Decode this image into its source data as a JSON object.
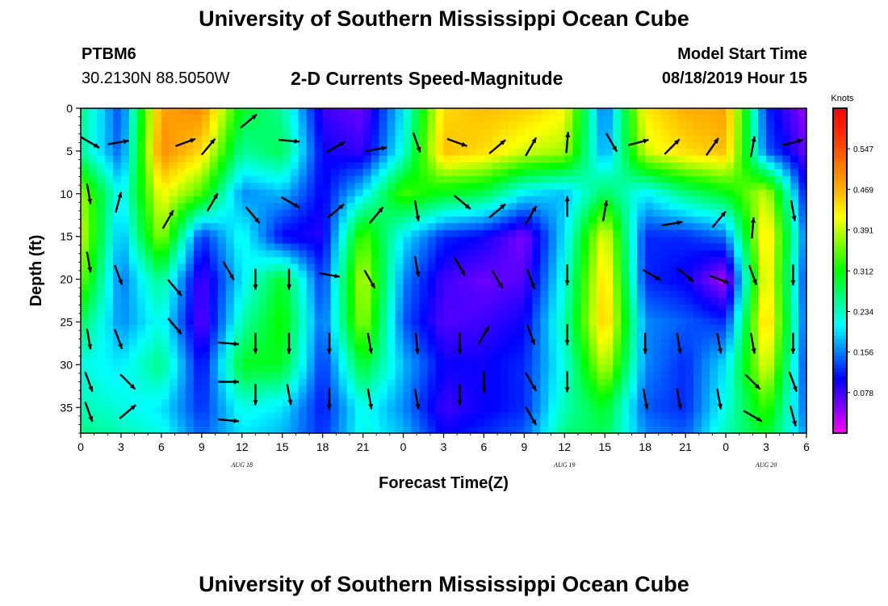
{
  "header": {
    "title": "University of Southern Mississippi Ocean Cube",
    "station_id": "PTBM6",
    "station_coords": "30.2130N 88.5050W",
    "subtitle": "2-D Currents Speed-Magnitude",
    "model_start_label": "Model Start Time",
    "model_start_value": "08/18/2019 Hour 15"
  },
  "footer": {
    "title": "University of Southern Mississippi Ocean Cube"
  },
  "chart_data": {
    "type": "heatmap",
    "title": "2-D Currents Speed-Magnitude",
    "xlabel": "Forecast Time(Z)",
    "ylabel": "Depth (ft)",
    "x_ticks": [
      "0",
      "3",
      "6",
      "9",
      "12",
      "15",
      "18",
      "21",
      "0",
      "3",
      "6",
      "9",
      "12",
      "15",
      "18",
      "21",
      "0",
      "3",
      "6"
    ],
    "x_range_hours": [
      0,
      54
    ],
    "date_labels": [
      {
        "text": "AUG 18",
        "hour": 12
      },
      {
        "text": "AUG 19",
        "hour": 36
      },
      {
        "text": "AUG 20",
        "hour": 51
      }
    ],
    "y_ticks": [
      0,
      5,
      10,
      15,
      20,
      25,
      30,
      35
    ],
    "y_range_ft": [
      0,
      38
    ],
    "colorbar": {
      "units": "Knots",
      "ticks": [
        0.547,
        0.469,
        0.391,
        0.312,
        0.234,
        0.156,
        0.078
      ],
      "range": [
        0.0,
        0.625
      ],
      "colors": [
        "#ff00ff",
        "#7f00ff",
        "#0000ff",
        "#0080ff",
        "#00ffff",
        "#00ff80",
        "#00ff00",
        "#80ff00",
        "#ffff00",
        "#ffb000",
        "#ff7000",
        "#ff3000",
        "#ff0000"
      ]
    },
    "time_hours": [
      0,
      3,
      6,
      9,
      12,
      15,
      18,
      21,
      24,
      27,
      30,
      33,
      36,
      39,
      42,
      45,
      48,
      51,
      54
    ],
    "depth_ft": [
      0,
      5,
      10,
      15,
      20,
      25,
      30,
      35,
      38
    ],
    "speed_knots": [
      [
        0.26,
        0.13,
        0.48,
        0.5,
        0.3,
        0.25,
        0.08,
        0.06,
        0.2,
        0.44,
        0.46,
        0.45,
        0.42,
        0.14,
        0.43,
        0.47,
        0.48,
        0.12,
        0.04
      ],
      [
        0.25,
        0.14,
        0.5,
        0.44,
        0.25,
        0.28,
        0.1,
        0.08,
        0.22,
        0.46,
        0.44,
        0.4,
        0.38,
        0.16,
        0.4,
        0.44,
        0.46,
        0.14,
        0.06
      ],
      [
        0.38,
        0.2,
        0.42,
        0.34,
        0.16,
        0.18,
        0.1,
        0.2,
        0.34,
        0.3,
        0.28,
        0.2,
        0.18,
        0.28,
        0.2,
        0.26,
        0.3,
        0.4,
        0.1
      ],
      [
        0.4,
        0.17,
        0.38,
        0.12,
        0.22,
        0.1,
        0.09,
        0.35,
        0.2,
        0.12,
        0.1,
        0.05,
        0.2,
        0.42,
        0.12,
        0.12,
        0.15,
        0.45,
        0.14
      ],
      [
        0.36,
        0.15,
        0.26,
        0.07,
        0.2,
        0.3,
        0.12,
        0.4,
        0.16,
        0.08,
        0.06,
        0.07,
        0.22,
        0.45,
        0.12,
        0.1,
        0.03,
        0.44,
        0.12
      ],
      [
        0.28,
        0.16,
        0.22,
        0.06,
        0.24,
        0.32,
        0.14,
        0.38,
        0.14,
        0.07,
        0.08,
        0.1,
        0.24,
        0.46,
        0.16,
        0.14,
        0.12,
        0.46,
        0.13
      ],
      [
        0.22,
        0.2,
        0.26,
        0.1,
        0.3,
        0.3,
        0.12,
        0.3,
        0.18,
        0.1,
        0.1,
        0.12,
        0.22,
        0.4,
        0.16,
        0.12,
        0.2,
        0.42,
        0.12
      ],
      [
        0.24,
        0.22,
        0.2,
        0.12,
        0.22,
        0.2,
        0.11,
        0.22,
        0.16,
        0.08,
        0.1,
        0.12,
        0.24,
        0.3,
        0.14,
        0.12,
        0.22,
        0.34,
        0.14
      ],
      [
        0.26,
        0.24,
        0.22,
        0.14,
        0.2,
        0.18,
        0.12,
        0.22,
        0.18,
        0.1,
        0.12,
        0.14,
        0.26,
        0.28,
        0.16,
        0.14,
        0.24,
        0.3,
        0.16
      ]
    ],
    "vectors": [
      {
        "t": 0.7,
        "d": 4.0,
        "a": -30
      },
      {
        "t": 2.8,
        "d": 4.0,
        "a": 10
      },
      {
        "t": 7.8,
        "d": 4.0,
        "a": 20
      },
      {
        "t": 9.5,
        "d": 4.5,
        "a": 50
      },
      {
        "t": 12.5,
        "d": 1.5,
        "a": 40
      },
      {
        "t": 15.5,
        "d": 3.8,
        "a": -5
      },
      {
        "t": 19.0,
        "d": 4.5,
        "a": 30
      },
      {
        "t": 22.0,
        "d": 4.8,
        "a": 10
      },
      {
        "t": 25.0,
        "d": 4.0,
        "a": -70
      },
      {
        "t": 28.0,
        "d": 4.0,
        "a": -20
      },
      {
        "t": 31.0,
        "d": 4.5,
        "a": 40
      },
      {
        "t": 33.5,
        "d": 4.5,
        "a": 60
      },
      {
        "t": 36.2,
        "d": 4.0,
        "a": 85
      },
      {
        "t": 39.5,
        "d": 4.0,
        "a": -60
      },
      {
        "t": 41.5,
        "d": 4.0,
        "a": 15
      },
      {
        "t": 44.0,
        "d": 4.5,
        "a": 45
      },
      {
        "t": 47.0,
        "d": 4.5,
        "a": 55
      },
      {
        "t": 50.0,
        "d": 4.5,
        "a": 80
      },
      {
        "t": 53.0,
        "d": 4.0,
        "a": 15
      },
      {
        "t": 0.6,
        "d": 10.0,
        "a": -80
      },
      {
        "t": 2.8,
        "d": 11.0,
        "a": 75
      },
      {
        "t": 6.5,
        "d": 13.0,
        "a": 60
      },
      {
        "t": 9.8,
        "d": 11.0,
        "a": 60
      },
      {
        "t": 12.8,
        "d": 12.5,
        "a": -50
      },
      {
        "t": 15.6,
        "d": 11.0,
        "a": -30
      },
      {
        "t": 19.0,
        "d": 12.0,
        "a": 40
      },
      {
        "t": 22.0,
        "d": 12.5,
        "a": 50
      },
      {
        "t": 25.0,
        "d": 12.0,
        "a": -80
      },
      {
        "t": 28.4,
        "d": 11.0,
        "a": -40
      },
      {
        "t": 31.0,
        "d": 12.0,
        "a": 40
      },
      {
        "t": 33.5,
        "d": 12.5,
        "a": 60
      },
      {
        "t": 36.2,
        "d": 11.5,
        "a": 90
      },
      {
        "t": 39.0,
        "d": 12.0,
        "a": 80
      },
      {
        "t": 44.0,
        "d": 13.5,
        "a": 10
      },
      {
        "t": 47.5,
        "d": 13.0,
        "a": 50
      },
      {
        "t": 50.0,
        "d": 14.0,
        "a": 85
      },
      {
        "t": 53.0,
        "d": 12.0,
        "a": -80
      },
      {
        "t": 0.6,
        "d": 18.0,
        "a": -80
      },
      {
        "t": 2.8,
        "d": 19.5,
        "a": -70
      },
      {
        "t": 7.0,
        "d": 21.0,
        "a": -50
      },
      {
        "t": 11.0,
        "d": 19.0,
        "a": -60
      },
      {
        "t": 13.0,
        "d": 20.0,
        "a": -90
      },
      {
        "t": 15.5,
        "d": 20.0,
        "a": -90
      },
      {
        "t": 18.5,
        "d": 19.5,
        "a": -10
      },
      {
        "t": 21.5,
        "d": 20.0,
        "a": -60
      },
      {
        "t": 25.0,
        "d": 18.5,
        "a": -80
      },
      {
        "t": 28.2,
        "d": 18.5,
        "a": -60
      },
      {
        "t": 31.0,
        "d": 20.0,
        "a": -60
      },
      {
        "t": 33.5,
        "d": 20.0,
        "a": -70
      },
      {
        "t": 36.2,
        "d": 19.5,
        "a": -90
      },
      {
        "t": 42.5,
        "d": 19.5,
        "a": -30
      },
      {
        "t": 45.0,
        "d": 19.5,
        "a": -40
      },
      {
        "t": 47.5,
        "d": 20.0,
        "a": -20
      },
      {
        "t": 50.0,
        "d": 19.5,
        "a": -70
      },
      {
        "t": 53.0,
        "d": 19.5,
        "a": -90
      },
      {
        "t": 0.6,
        "d": 27.0,
        "a": -80
      },
      {
        "t": 2.8,
        "d": 27.0,
        "a": -70
      },
      {
        "t": 7.0,
        "d": 25.5,
        "a": -50
      },
      {
        "t": 11.0,
        "d": 27.5,
        "a": -5
      },
      {
        "t": 13.0,
        "d": 27.5,
        "a": -90
      },
      {
        "t": 15.5,
        "d": 27.5,
        "a": -90
      },
      {
        "t": 18.5,
        "d": 27.5,
        "a": -90
      },
      {
        "t": 21.5,
        "d": 27.5,
        "a": -80
      },
      {
        "t": 25.0,
        "d": 27.5,
        "a": -85
      },
      {
        "t": 28.2,
        "d": 27.5,
        "a": -90
      },
      {
        "t": 30.0,
        "d": 26.5,
        "a": 60
      },
      {
        "t": 33.5,
        "d": 26.5,
        "a": -70
      },
      {
        "t": 36.2,
        "d": 26.5,
        "a": -90
      },
      {
        "t": 42.0,
        "d": 27.5,
        "a": -90
      },
      {
        "t": 44.5,
        "d": 27.5,
        "a": -80
      },
      {
        "t": 47.5,
        "d": 27.5,
        "a": -80
      },
      {
        "t": 50.0,
        "d": 27.5,
        "a": -80
      },
      {
        "t": 53.0,
        "d": 27.5,
        "a": -90
      },
      {
        "t": 0.6,
        "d": 32.0,
        "a": -70
      },
      {
        "t": 3.5,
        "d": 32.0,
        "a": -45
      },
      {
        "t": 11.0,
        "d": 32.0,
        "a": 0
      },
      {
        "t": 13.0,
        "d": 33.5,
        "a": -90
      },
      {
        "t": 15.5,
        "d": 33.5,
        "a": -80
      },
      {
        "t": 18.5,
        "d": 34.0,
        "a": -90
      },
      {
        "t": 21.5,
        "d": 34.0,
        "a": -80
      },
      {
        "t": 25.0,
        "d": 34.0,
        "a": -80
      },
      {
        "t": 28.2,
        "d": 33.5,
        "a": -90
      },
      {
        "t": 30.0,
        "d": 32.0,
        "a": -90
      },
      {
        "t": 33.5,
        "d": 32.0,
        "a": -60
      },
      {
        "t": 36.2,
        "d": 32.0,
        "a": -90
      },
      {
        "t": 42.0,
        "d": 34.0,
        "a": -80
      },
      {
        "t": 44.5,
        "d": 34.0,
        "a": -80
      },
      {
        "t": 47.5,
        "d": 34.0,
        "a": -80
      },
      {
        "t": 50.0,
        "d": 32.0,
        "a": -45
      },
      {
        "t": 53.0,
        "d": 32.0,
        "a": -70
      },
      {
        "t": 0.6,
        "d": 35.5,
        "a": -70
      },
      {
        "t": 3.5,
        "d": 35.5,
        "a": 40
      },
      {
        "t": 11.0,
        "d": 36.5,
        "a": -5
      },
      {
        "t": 33.5,
        "d": 36.0,
        "a": -60
      },
      {
        "t": 50.0,
        "d": 36.0,
        "a": -30
      },
      {
        "t": 53.0,
        "d": 36.0,
        "a": -75
      }
    ]
  }
}
